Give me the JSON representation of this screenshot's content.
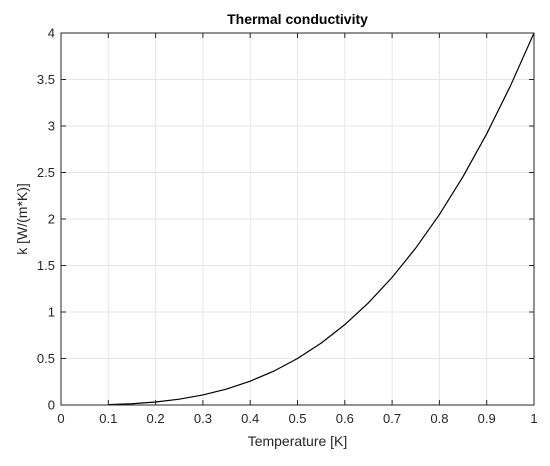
{
  "chart_data": {
    "type": "line",
    "title": "Thermal conductivity",
    "xlabel": "Temperature [K]",
    "ylabel": "k [W/(m*K)]",
    "xlim": [
      0,
      1
    ],
    "ylim": [
      0,
      4
    ],
    "xticks": [
      0,
      0.1,
      0.2,
      0.3,
      0.4,
      0.5,
      0.6,
      0.7,
      0.8,
      0.9,
      1
    ],
    "xtick_labels": [
      "0",
      "0.1",
      "0.2",
      "0.3",
      "0.4",
      "0.5",
      "0.6",
      "0.7",
      "0.8",
      "0.9",
      "1"
    ],
    "yticks": [
      0,
      0.5,
      1,
      1.5,
      2,
      2.5,
      3,
      3.5,
      4
    ],
    "ytick_labels": [
      "0",
      "0.5",
      "1",
      "1.5",
      "2",
      "2.5",
      "3",
      "3.5",
      "4"
    ],
    "grid": true,
    "series": [
      {
        "color": "#000000",
        "x": [
          0.1,
          0.15,
          0.2,
          0.25,
          0.3,
          0.35,
          0.4,
          0.45,
          0.5,
          0.55,
          0.6,
          0.65,
          0.7,
          0.75,
          0.8,
          0.85,
          0.9,
          0.95,
          1.0
        ],
        "y": [
          0.004,
          0.0135,
          0.032,
          0.0625,
          0.108,
          0.1715,
          0.256,
          0.3645,
          0.5,
          0.6655,
          0.864,
          1.0985,
          1.372,
          1.6875,
          2.048,
          2.4565,
          2.916,
          3.4295,
          4.0
        ]
      }
    ]
  },
  "colors": {
    "grid": "#e6e6e6",
    "axes": "#262626",
    "line": "#000000",
    "background": "#ffffff"
  }
}
